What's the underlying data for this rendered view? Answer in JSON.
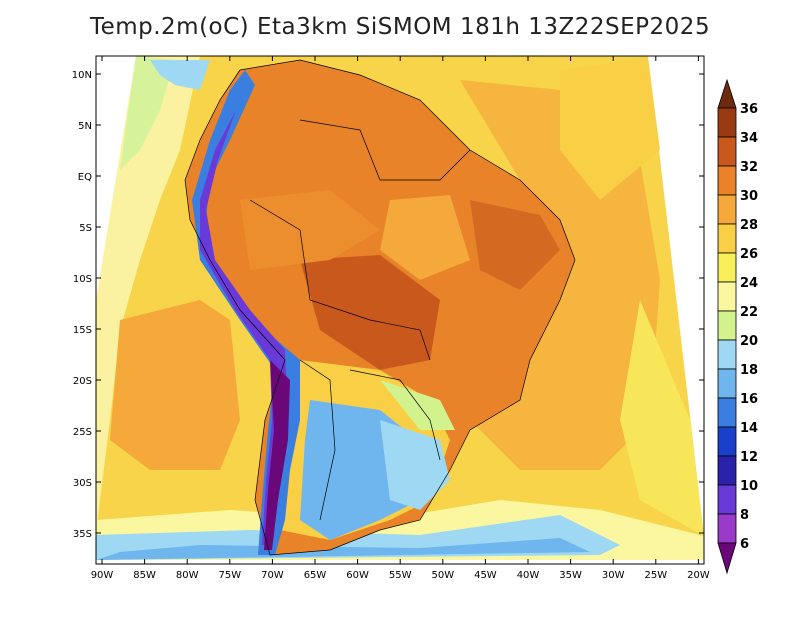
{
  "title": "Temp.2m(oC) Eta3km SiSMOM 181h 13Z22SEP2025",
  "lat_ticks": [
    "10N",
    "5N",
    "EQ",
    "5S",
    "10S",
    "15S",
    "20S",
    "25S",
    "30S",
    "35S"
  ],
  "lon_ticks": [
    "90W",
    "85W",
    "80W",
    "75W",
    "70W",
    "65W",
    "60W",
    "55W",
    "50W",
    "45W",
    "40W",
    "35W",
    "30W",
    "25W",
    "20W"
  ],
  "colorbar": {
    "labels": [
      "36",
      "34",
      "32",
      "30",
      "28",
      "26",
      "24",
      "22",
      "20",
      "18",
      "16",
      "14",
      "12",
      "10",
      "8",
      "6"
    ],
    "colors": [
      "#6e2a0e",
      "#9a3a12",
      "#c8581c",
      "#e8832a",
      "#f5a93a",
      "#f9cf45",
      "#f8ef5a",
      "#faf7a0",
      "#d2f28e",
      "#9fd8f2",
      "#6fb6ee",
      "#3a7fe0",
      "#1a3fc8",
      "#2a22a8",
      "#6a3ad8",
      "#9a3ac8",
      "#6a087a"
    ]
  }
}
